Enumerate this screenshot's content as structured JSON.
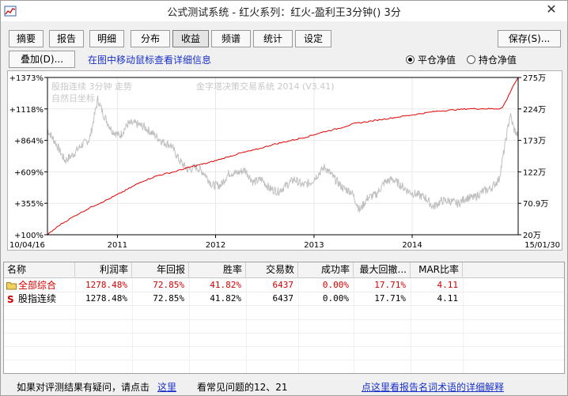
{
  "window": {
    "title": "公式测试系统 - 红火系列：红火-盈利王3分钟() 3分",
    "close_icon": "close-icon"
  },
  "tabs": [
    {
      "label": "摘要",
      "active": false
    },
    {
      "label": "报告",
      "active": false
    },
    {
      "label": "明细",
      "active": false
    },
    {
      "label": "分布",
      "active": false
    },
    {
      "label": "收益",
      "active": true
    },
    {
      "label": "频谱",
      "active": false
    },
    {
      "label": "统计",
      "active": false
    },
    {
      "label": "设定",
      "active": false
    }
  ],
  "toolbar": {
    "save_label": "保存(S)...",
    "overlay_label": "叠加(D)...",
    "hint": "在图中移动鼠标查看详细信息",
    "radio_flat": "平仓净值",
    "radio_hold": "持仓净值",
    "radio_selected": "flat"
  },
  "chart": {
    "legend_line1": "股指连续 3分钟 走势",
    "legend_line2": "自然日坐标",
    "watermark": "金字塔决策交易系统 2014 (V3.41)",
    "colors": {
      "equity": "#e00000",
      "price": "#c0c0c0"
    }
  },
  "chart_data": {
    "type": "line",
    "x_start_label": "10/04/16",
    "x_end_label": "15/01/30",
    "x_ticks": [
      "2011",
      "2012",
      "2013",
      "2014"
    ],
    "left_axis_ticks": [
      "+1373%",
      "+1118%",
      "+864%",
      "+609%",
      "+355%",
      "+100%"
    ],
    "right_axis_ticks": [
      "275万",
      "224万",
      "173万",
      "122万",
      "70.9万",
      "20万"
    ],
    "left_ylim": [
      100,
      1373
    ],
    "right_ylim": [
      20,
      275
    ],
    "series": [
      {
        "name": "净值",
        "axis": "left",
        "x": [
          "2010-04-16",
          "2010-06-01",
          "2010-08-01",
          "2010-10-01",
          "2010-12-01",
          "2011-02-01",
          "2011-04-01",
          "2011-06-01",
          "2011-08-01",
          "2011-10-01",
          "2011-12-01",
          "2012-02-01",
          "2012-04-01",
          "2012-06-01",
          "2012-08-01",
          "2012-10-01",
          "2012-12-01",
          "2013-02-01",
          "2013-04-01",
          "2013-06-01",
          "2013-08-01",
          "2013-10-01",
          "2013-12-01",
          "2014-02-01",
          "2014-04-01",
          "2014-06-01",
          "2014-08-01",
          "2014-10-01",
          "2014-11-15",
          "2014-12-01",
          "2014-12-20",
          "2015-01-10",
          "2015-01-30"
        ],
        "values": [
          100,
          180,
          260,
          330,
          390,
          460,
          530,
          580,
          610,
          650,
          680,
          720,
          760,
          790,
          830,
          860,
          890,
          930,
          960,
          1000,
          1020,
          1040,
          1060,
          1080,
          1100,
          1110,
          1120,
          1120,
          1120,
          1125,
          1200,
          1300,
          1373
        ]
      },
      {
        "name": "股指连续",
        "axis": "right",
        "x": [
          "2010-04-16",
          "2010-05-15",
          "2010-06-20",
          "2010-07-20",
          "2010-08-20",
          "2010-09-20",
          "2010-10-20",
          "2010-11-10",
          "2010-12-10",
          "2011-01-10",
          "2011-02-10",
          "2011-03-10",
          "2011-04-10",
          "2011-05-10",
          "2011-06-20",
          "2011-07-20",
          "2011-08-20",
          "2011-09-20",
          "2011-10-20",
          "2011-11-20",
          "2011-12-20",
          "2012-01-20",
          "2012-02-20",
          "2012-03-20",
          "2012-04-20",
          "2012-05-20",
          "2012-06-20",
          "2012-07-20",
          "2012-08-20",
          "2012-09-20",
          "2012-10-20",
          "2012-11-20",
          "2012-12-20",
          "2013-01-20",
          "2013-02-10",
          "2013-03-20",
          "2013-04-20",
          "2013-05-20",
          "2013-06-20",
          "2013-07-20",
          "2013-08-20",
          "2013-09-20",
          "2013-10-20",
          "2013-11-20",
          "2013-12-20",
          "2014-01-20",
          "2014-02-20",
          "2014-03-20",
          "2014-04-20",
          "2014-05-20",
          "2014-06-20",
          "2014-07-20",
          "2014-08-20",
          "2014-09-20",
          "2014-10-20",
          "2014-11-20",
          "2014-12-10",
          "2014-12-31",
          "2015-01-15",
          "2015-01-30"
        ],
        "values": [
          190,
          170,
          140,
          150,
          165,
          175,
          240,
          215,
          190,
          180,
          200,
          200,
          195,
          185,
          170,
          165,
          140,
          125,
          130,
          120,
          100,
          100,
          120,
          120,
          125,
          105,
          110,
          95,
          90,
          100,
          110,
          100,
          105,
          120,
          130,
          110,
          95,
          90,
          60,
          80,
          85,
          105,
          110,
          100,
          90,
          85,
          80,
          65,
          75,
          75,
          70,
          80,
          80,
          90,
          95,
          110,
          160,
          215,
          190,
          180
        ]
      }
    ]
  },
  "table": {
    "headers": [
      "名称",
      "利润率",
      "年回报",
      "胜率",
      "交易数",
      "成功率",
      "最大回撤...",
      "MAR比率"
    ],
    "rows": [
      {
        "name": "全部综合",
        "icon": "folder-icon",
        "profit": "1278.48%",
        "annual": "72.85%",
        "win": "41.82%",
        "trades": "6437",
        "success": "0.00%",
        "drawdown": "17.71%",
        "mar": "4.11",
        "highlight": true
      },
      {
        "name": "股指连续",
        "icon": "s-symbol-icon",
        "profit": "1278.48%",
        "annual": "72.85%",
        "win": "41.82%",
        "trades": "6437",
        "success": "0.00%",
        "drawdown": "17.71%",
        "mar": "4.11",
        "highlight": false
      }
    ]
  },
  "footer": {
    "question": "如果对评测结果有疑问，请点击",
    "here": "这里",
    "faq": "看常见问题的12、21",
    "terms": "点这里看报告名词术语的详细解释"
  }
}
